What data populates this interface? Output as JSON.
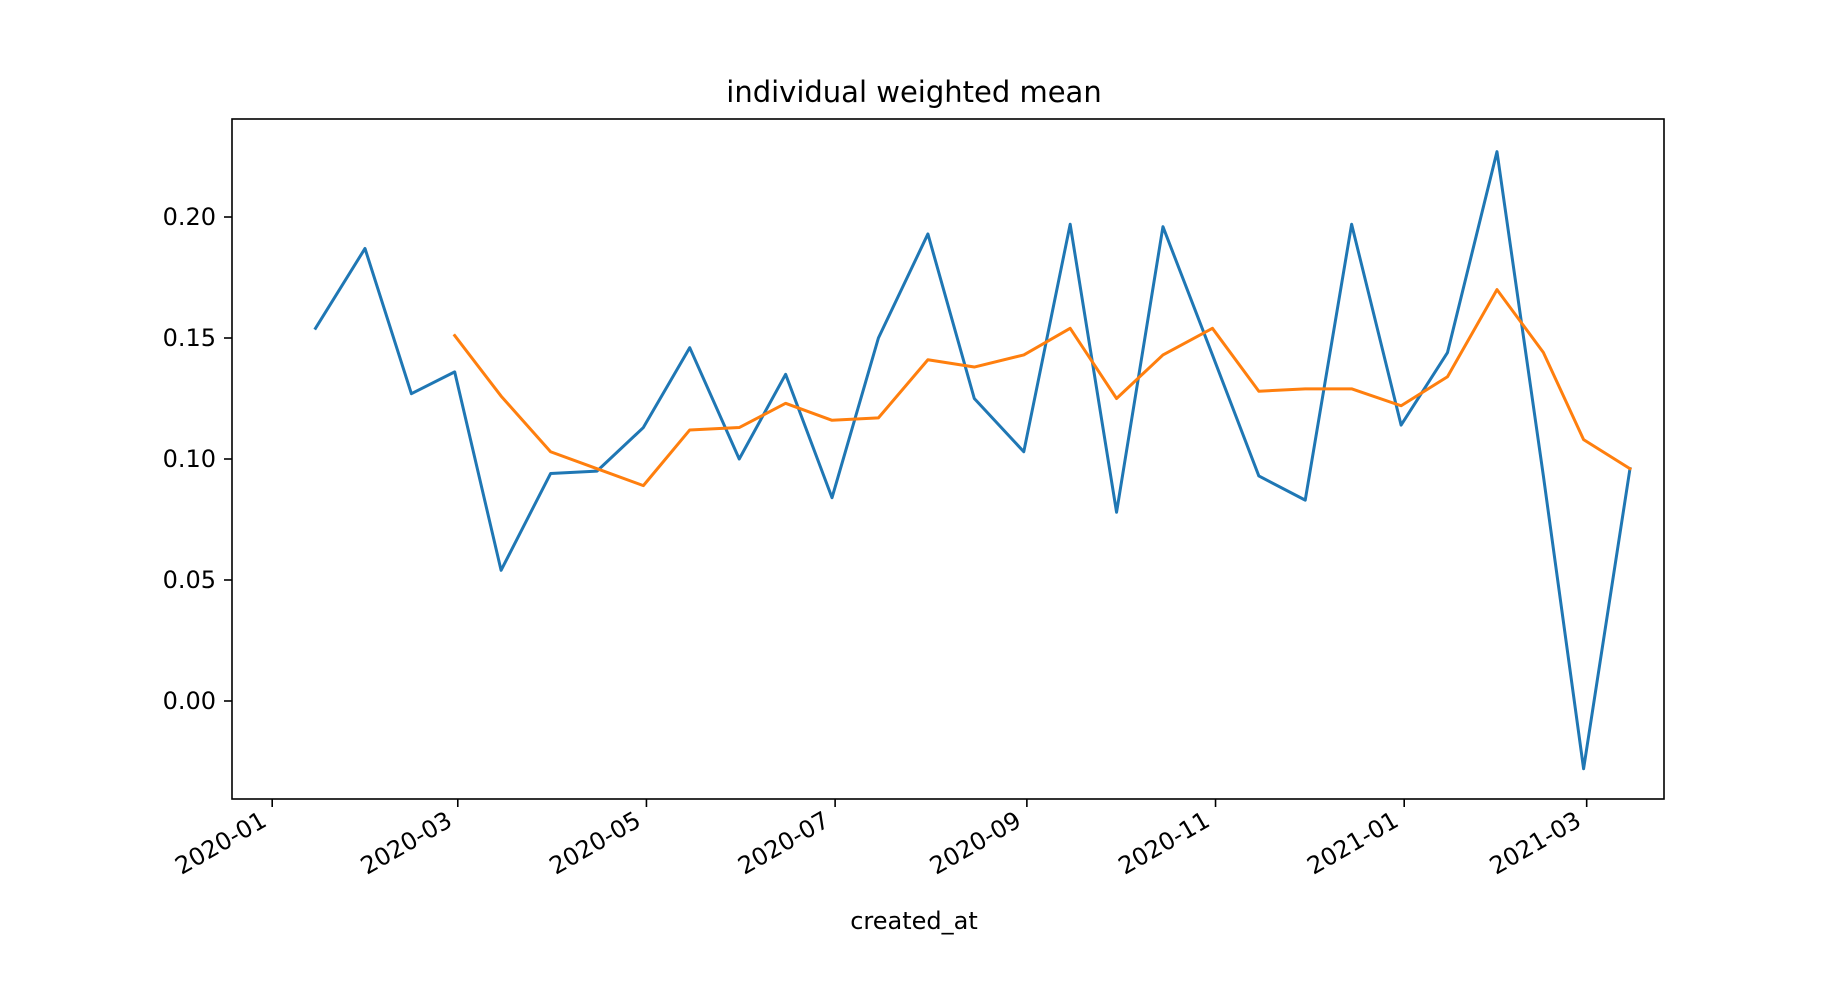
{
  "chart_data": {
    "type": "line",
    "title": "individual weighted mean",
    "xlabel": "created_at",
    "ylabel": "",
    "x_axis_type": "date",
    "xlim": [
      "2019-12-19",
      "2021-03-26"
    ],
    "ylim": [
      -0.0405,
      0.2405
    ],
    "x_tick_labels": [
      "2020-01",
      "2020-03",
      "2020-05",
      "2020-07",
      "2020-09",
      "2020-11",
      "2021-01",
      "2021-03"
    ],
    "x_tick_values": [
      "2020-01-01",
      "2020-03-01",
      "2020-05-01",
      "2020-07-01",
      "2020-09-01",
      "2020-11-01",
      "2021-01-01",
      "2021-03-01"
    ],
    "y_tick_labels": [
      "0.00",
      "0.05",
      "0.10",
      "0.15",
      "0.20"
    ],
    "y_tick_values": [
      0.0,
      0.05,
      0.1,
      0.15,
      0.2
    ],
    "grid": false,
    "legend": "none",
    "series": [
      {
        "color": "#1f77b4",
        "points": [
          [
            "2020-01-15",
            0.154
          ],
          [
            "2020-01-31",
            0.187
          ],
          [
            "2020-02-15",
            0.127
          ],
          [
            "2020-02-29",
            0.136
          ],
          [
            "2020-03-15",
            0.054
          ],
          [
            "2020-03-31",
            0.094
          ],
          [
            "2020-04-15",
            0.095
          ],
          [
            "2020-04-30",
            0.113
          ],
          [
            "2020-05-15",
            0.146
          ],
          [
            "2020-05-31",
            0.1
          ],
          [
            "2020-06-15",
            0.135
          ],
          [
            "2020-06-30",
            0.084
          ],
          [
            "2020-07-15",
            0.15
          ],
          [
            "2020-07-31",
            0.193
          ],
          [
            "2020-08-15",
            0.125
          ],
          [
            "2020-08-31",
            0.103
          ],
          [
            "2020-09-15",
            0.197
          ],
          [
            "2020-09-30",
            0.078
          ],
          [
            "2020-10-15",
            0.196
          ],
          [
            "2020-10-31",
            0.143
          ],
          [
            "2020-11-15",
            0.093
          ],
          [
            "2020-11-30",
            0.083
          ],
          [
            "2020-12-15",
            0.197
          ],
          [
            "2020-12-31",
            0.114
          ],
          [
            "2021-01-15",
            0.144
          ],
          [
            "2021-01-31",
            0.227
          ],
          [
            "2021-02-15",
            0.093
          ],
          [
            "2021-02-28",
            -0.028
          ],
          [
            "2021-03-15",
            0.096
          ]
        ]
      },
      {
        "color": "#ff7f0e",
        "points": [
          [
            "2020-02-29",
            0.151
          ],
          [
            "2020-03-15",
            0.126
          ],
          [
            "2020-03-31",
            0.103
          ],
          [
            "2020-04-15",
            0.096
          ],
          [
            "2020-04-30",
            0.089
          ],
          [
            "2020-05-15",
            0.112
          ],
          [
            "2020-05-31",
            0.113
          ],
          [
            "2020-06-15",
            0.123
          ],
          [
            "2020-06-30",
            0.116
          ],
          [
            "2020-07-15",
            0.117
          ],
          [
            "2020-07-31",
            0.141
          ],
          [
            "2020-08-15",
            0.138
          ],
          [
            "2020-08-31",
            0.143
          ],
          [
            "2020-09-15",
            0.154
          ],
          [
            "2020-09-30",
            0.125
          ],
          [
            "2020-10-15",
            0.143
          ],
          [
            "2020-10-31",
            0.154
          ],
          [
            "2020-11-15",
            0.128
          ],
          [
            "2020-11-30",
            0.129
          ],
          [
            "2020-12-15",
            0.129
          ],
          [
            "2020-12-31",
            0.122
          ],
          [
            "2021-01-15",
            0.134
          ],
          [
            "2021-01-31",
            0.17
          ],
          [
            "2021-02-15",
            0.144
          ],
          [
            "2021-02-28",
            0.108
          ],
          [
            "2021-03-15",
            0.096
          ]
        ]
      }
    ]
  }
}
